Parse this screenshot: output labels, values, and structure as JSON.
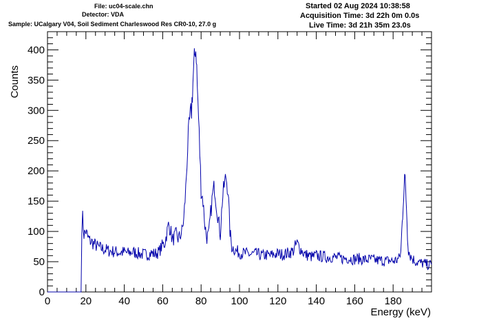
{
  "header": {
    "file": "File: uc04-scale.chn",
    "detector": "Detector: VDA",
    "sample": "Sample: UCalgary V04, Soil Sediment Charleswood Res CR0-10, 27.0 g",
    "started": "Started 02 Aug 2024 10:38:58",
    "acquisition": "Acquisition Time: 3d 22h 0m 0.0s",
    "live": "Live Time: 3d 21h 35m 23.0s"
  },
  "chart_data": {
    "type": "line",
    "xlabel": "Energy (keV)",
    "ylabel": "Counts",
    "xlim": [
      0,
      200
    ],
    "ylim": [
      0,
      430
    ],
    "x_ticks": [
      0,
      20,
      40,
      60,
      80,
      100,
      120,
      140,
      160,
      180
    ],
    "y_ticks": [
      0,
      50,
      100,
      150,
      200,
      250,
      300,
      350,
      400
    ],
    "line_color": "#0000aa",
    "x": [
      0,
      17.5,
      17.9,
      18.3,
      19,
      20,
      21,
      22,
      24,
      26,
      28,
      30,
      32,
      34,
      36,
      38,
      40,
      42,
      44,
      46,
      48,
      50,
      52,
      54,
      56,
      58,
      60,
      61,
      62,
      63,
      64,
      65,
      66,
      67,
      68,
      69,
      70,
      71,
      72,
      73,
      74,
      75,
      75.5,
      76,
      76.5,
      77,
      77.5,
      78,
      79,
      80,
      81,
      82,
      83,
      84,
      85,
      86,
      87,
      88,
      89,
      90,
      91,
      92,
      93,
      94,
      95,
      96,
      97,
      98,
      100,
      102,
      104,
      106,
      108,
      110,
      112,
      114,
      116,
      118,
      120,
      122,
      124,
      126,
      128,
      129,
      130,
      132,
      134,
      136,
      138,
      140,
      142,
      144,
      146,
      148,
      150,
      152,
      154,
      156,
      158,
      160,
      162,
      164,
      166,
      168,
      170,
      172,
      174,
      176,
      178,
      180,
      181,
      182,
      183,
      184,
      184.5,
      185,
      185.5,
      186,
      186.5,
      187,
      187.5,
      188,
      189,
      190,
      192,
      194,
      196,
      198,
      200
    ],
    "values": [
      0,
      0,
      110,
      122,
      95,
      100,
      90,
      85,
      80,
      75,
      72,
      70,
      68,
      67,
      66,
      65,
      66,
      64,
      66,
      65,
      63,
      62,
      62,
      64,
      63,
      66,
      78,
      80,
      95,
      110,
      105,
      85,
      90,
      95,
      88,
      92,
      100,
      120,
      170,
      240,
      280,
      300,
      330,
      360,
      380,
      405,
      395,
      340,
      260,
      170,
      150,
      110,
      90,
      95,
      130,
      160,
      175,
      145,
      120,
      95,
      150,
      175,
      190,
      170,
      100,
      75,
      72,
      68,
      65,
      64,
      63,
      62,
      63,
      62,
      60,
      61,
      60,
      62,
      63,
      62,
      63,
      65,
      68,
      75,
      80,
      70,
      62,
      60,
      58,
      60,
      59,
      58,
      57,
      58,
      57,
      56,
      55,
      56,
      55,
      54,
      55,
      54,
      53,
      54,
      53,
      52,
      52,
      51,
      52,
      51,
      52,
      53,
      55,
      65,
      100,
      130,
      165,
      190,
      170,
      140,
      95,
      70,
      60,
      55,
      50,
      48,
      47,
      45,
      45
    ]
  }
}
